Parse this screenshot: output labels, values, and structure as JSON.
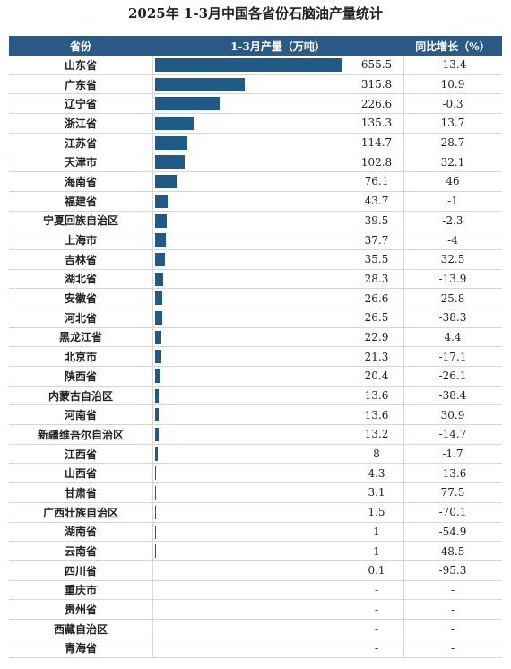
{
  "table": {
    "title": "2025年 1-3月中国各省份石脑油产量统计",
    "header": [
      "省份",
      "1-3月产量（万吨）",
      "同比增长（%）"
    ],
    "rows": [
      [
        "山东省",
        655.5,
        -13.4
      ],
      [
        "广东省",
        315.8,
        10.9
      ],
      [
        "辽宁省",
        226.6,
        -0.3
      ],
      [
        "浙江省",
        135.3,
        13.7
      ],
      [
        "江苏省",
        114.7,
        28.7
      ],
      [
        "天津市",
        102.8,
        32.1
      ],
      [
        "海南省",
        76.1,
        46
      ],
      [
        "福建省",
        43.7,
        -1
      ],
      [
        "宁夏回族自治区",
        39.5,
        -2.3
      ],
      [
        "上海市",
        37.7,
        -4
      ],
      [
        "吉林省",
        35.5,
        32.5
      ],
      [
        "湖北省",
        28.3,
        -13.9
      ],
      [
        "安徽省",
        26.6,
        25.8
      ],
      [
        "河北省",
        26.5,
        -38.3
      ],
      [
        "黑龙江省",
        22.9,
        4.4
      ],
      [
        "北京市",
        21.3,
        -17.1
      ],
      [
        "陕西省",
        20.4,
        -26.1
      ],
      [
        "内蒙古自治区",
        13.6,
        -38.4
      ],
      [
        "河南省",
        13.6,
        30.9
      ],
      [
        "新疆维吾尔自治区",
        13.2,
        -14.7
      ],
      [
        "江西省",
        8,
        -1.7
      ],
      [
        "山西省",
        4.3,
        -13.6
      ],
      [
        "甘肃省",
        3.1,
        77.5
      ],
      [
        "广西壮族自治区",
        1.5,
        -70.1
      ],
      [
        "湖南省",
        1,
        -54.9
      ],
      [
        "云南省",
        1,
        48.5
      ],
      [
        "四川省",
        0.1,
        -95.3
      ],
      [
        "重庆市",
        "-",
        "-"
      ],
      [
        "贵州省",
        "-",
        "-"
      ],
      [
        "西藏自治区",
        "-",
        "-"
      ],
      [
        "青海省",
        "-",
        "-"
      ]
    ]
  }
}
